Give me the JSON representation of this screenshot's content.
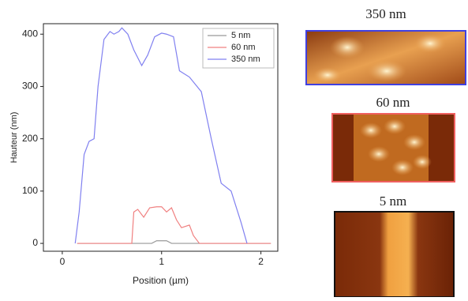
{
  "chart_data": {
    "type": "line",
    "xlabel": "Position (µm)",
    "ylabel": "Hauteur (nm)",
    "xlim": [
      -0.19,
      2.17
    ],
    "ylim": [
      -15,
      420
    ],
    "xticks": [
      0,
      1,
      2
    ],
    "yticks": [
      0,
      100,
      200,
      300,
      400
    ],
    "legend": "top-right",
    "series": [
      {
        "name": "5 nm",
        "color": "#999999",
        "x": [
          0.15,
          0.9,
          0.95,
          1.05,
          1.1,
          2.1
        ],
        "values": [
          0,
          0,
          5,
          5,
          0,
          0
        ]
      },
      {
        "name": "60 nm",
        "color": "#f08080",
        "x": [
          0.15,
          0.7,
          0.72,
          0.76,
          0.82,
          0.88,
          0.95,
          1.0,
          1.05,
          1.1,
          1.15,
          1.2,
          1.28,
          1.32,
          1.38,
          2.1
        ],
        "values": [
          0,
          0,
          60,
          65,
          50,
          68,
          70,
          70,
          60,
          68,
          45,
          30,
          35,
          15,
          0,
          0
        ]
      },
      {
        "name": "350 nm",
        "color": "#8080f0",
        "x": [
          0.13,
          0.17,
          0.22,
          0.27,
          0.32,
          0.36,
          0.42,
          0.48,
          0.52,
          0.57,
          0.6,
          0.66,
          0.72,
          0.8,
          0.86,
          0.93,
          1.0,
          1.05,
          1.12,
          1.18,
          1.28,
          1.4,
          1.5,
          1.6,
          1.7,
          1.8,
          1.86
        ],
        "values": [
          0,
          60,
          170,
          195,
          200,
          300,
          390,
          405,
          400,
          405,
          412,
          400,
          370,
          340,
          360,
          395,
          402,
          400,
          395,
          330,
          318,
          290,
          200,
          115,
          100,
          40,
          0
        ]
      }
    ]
  },
  "images": [
    {
      "title": "350 nm"
    },
    {
      "title": "60 nm"
    },
    {
      "title": "5 nm"
    }
  ]
}
